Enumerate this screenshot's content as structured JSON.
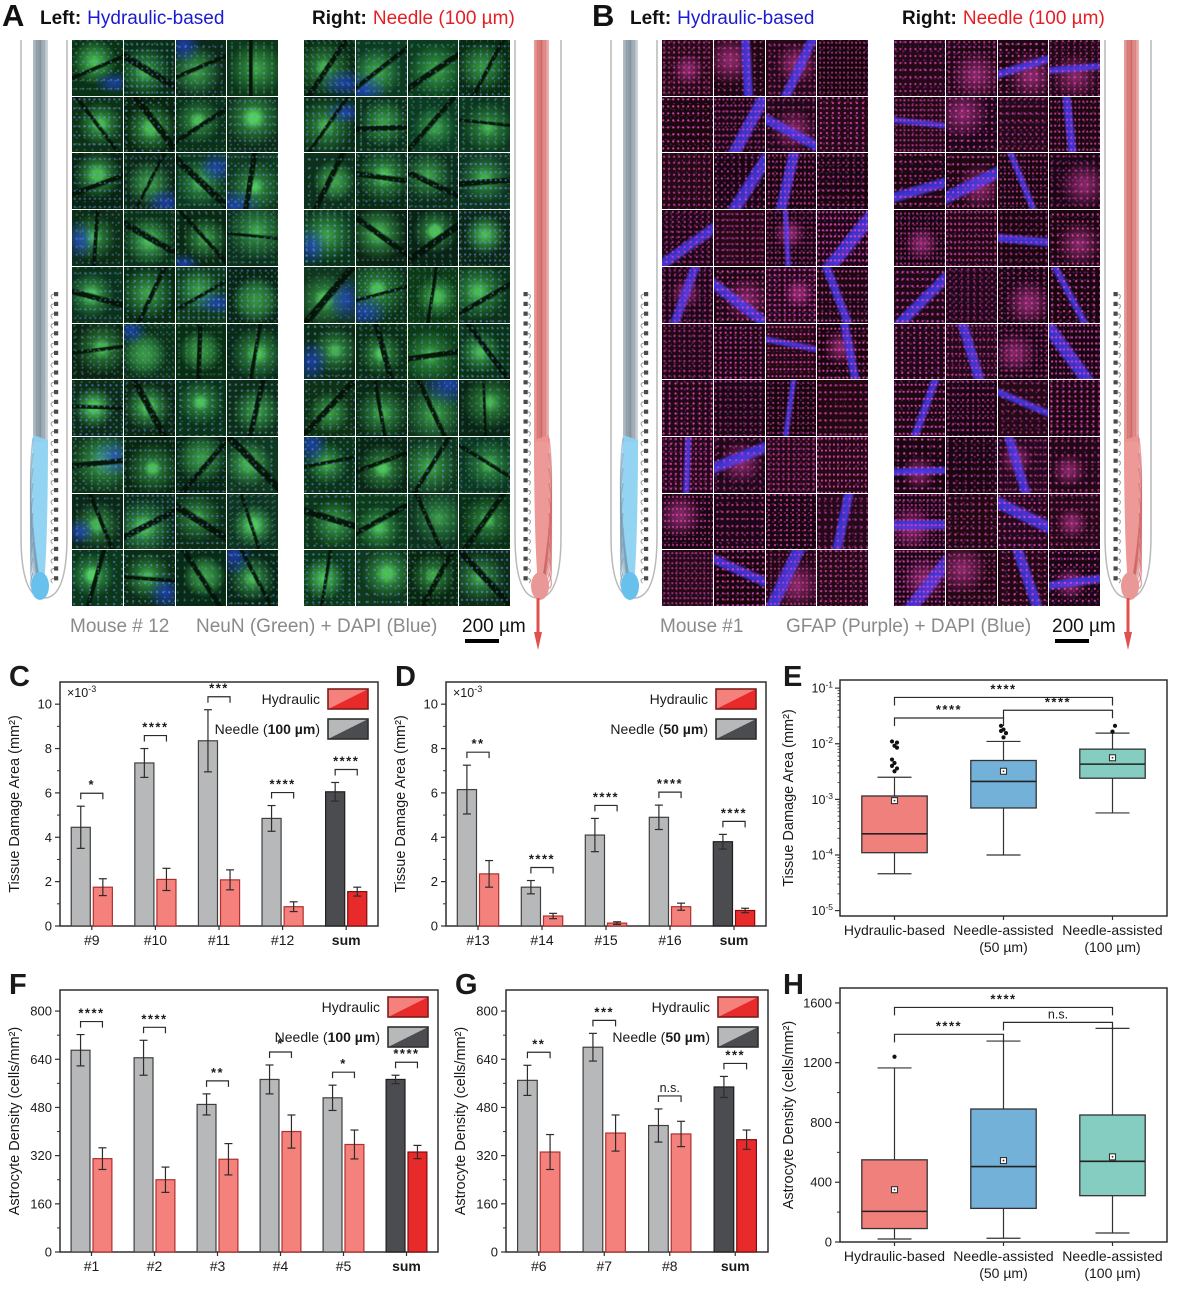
{
  "panel_a": {
    "letter": "A",
    "left_prefix": "Left:",
    "left_label": "Hydraulic-based",
    "right_prefix": "Right:",
    "right_label": "Needle (100 µm)",
    "caption_mouse": "Mouse # 12",
    "caption_stain": "NeuN (Green) + DAPI (Blue)",
    "caption_scale": "200 µm",
    "grid_rows": 10,
    "grid_cols": 4,
    "stain_type": "neun"
  },
  "panel_b": {
    "letter": "B",
    "left_prefix": "Left:",
    "left_label": "Hydraulic-based",
    "right_prefix": "Right:",
    "right_label": "Needle (100 µm)",
    "caption_mouse": "Mouse #1",
    "caption_stain": "GFAP (Purple) + DAPI (Blue)",
    "caption_scale": "200 µm",
    "grid_rows": 10,
    "grid_cols": 4,
    "stain_type": "gfap"
  },
  "colors": {
    "hydraulic_light": "#f5817d",
    "hydraulic_dark": "#e92a2b",
    "hydraulic_edge": "#b03030",
    "hydraulic_sum_edge": "#7d0f10",
    "needle_light": "#b7b8ba",
    "needle_dark": "#4b4c50",
    "needle_edge": "#3f3f3f",
    "needle_sum_edge": "#1e1e1e",
    "box_red": "#f0807b",
    "box_blue": "#74b1d9",
    "box_teal": "#85ccc1",
    "label_blue": "#1b1bd0",
    "label_red": "#e31e24"
  },
  "chart_data": [
    {
      "id": "C",
      "type": "bar",
      "ylabel": "Tissue Damage Area (mm²)",
      "scale_note_base": "×10",
      "scale_note_exp": "-3",
      "ylim": [
        0,
        11
      ],
      "yticks": [
        0,
        2,
        4,
        6,
        8,
        10
      ],
      "categories": [
        "#9",
        "#10",
        "#11",
        "#12",
        "sum"
      ],
      "series": [
        {
          "name": "Needle (100 µm)",
          "values": [
            4.45,
            7.35,
            8.35,
            4.85,
            6.05
          ],
          "errors": [
            0.95,
            0.65,
            1.4,
            0.58,
            0.42
          ]
        },
        {
          "name": "Hydraulic",
          "values": [
            1.75,
            2.1,
            2.08,
            0.87,
            1.55
          ],
          "errors": [
            0.38,
            0.5,
            0.45,
            0.22,
            0.2
          ]
        }
      ],
      "significance": [
        "*",
        "****",
        "***",
        "****",
        "****"
      ],
      "legend": {
        "hydraulic": "Hydraulic",
        "needle_pre": "Needle (",
        "needle_bold": "100 µm",
        "needle_post": ")"
      }
    },
    {
      "id": "D",
      "type": "bar",
      "ylabel": "Tissue Damage Area (mm²)",
      "scale_note_base": "×10",
      "scale_note_exp": "-3",
      "ylim": [
        0,
        11
      ],
      "yticks": [
        0,
        2,
        4,
        6,
        8,
        10
      ],
      "categories": [
        "#13",
        "#14",
        "#15",
        "#16",
        "sum"
      ],
      "series": [
        {
          "name": "Needle (50 µm)",
          "values": [
            6.15,
            1.75,
            4.1,
            4.9,
            3.8
          ],
          "errors": [
            1.1,
            0.3,
            0.75,
            0.55,
            0.33
          ]
        },
        {
          "name": "Hydraulic",
          "values": [
            2.35,
            0.45,
            0.13,
            0.87,
            0.7
          ],
          "errors": [
            0.6,
            0.12,
            0.06,
            0.16,
            0.1
          ]
        }
      ],
      "significance": [
        "**",
        "****",
        "****",
        "****",
        "****"
      ],
      "legend": {
        "hydraulic": "Hydraulic",
        "needle_pre": "Needle (",
        "needle_bold": "50 µm",
        "needle_post": ")"
      }
    },
    {
      "id": "E",
      "type": "box",
      "yscale": "log",
      "ylabel": "Tissue Damage Area (mm²)",
      "ylim": [
        8e-06,
        0.14
      ],
      "decades": [
        -1,
        -2,
        -3,
        -4,
        -5
      ],
      "categories": [
        [
          "Hydraulic-based"
        ],
        [
          "Needle-assisted",
          "(50 µm)"
        ],
        [
          "Needle-assisted",
          "(100 µm)"
        ]
      ],
      "boxes": [
        {
          "low": 4.6e-05,
          "q1": 0.00011,
          "median": 0.00024,
          "q3": 0.00115,
          "high": 0.0025,
          "mean": 0.00095,
          "outliers": [
            0.0032,
            0.0036,
            0.004,
            0.0045,
            0.0052,
            0.0085,
            0.0092,
            0.0105,
            0.011
          ],
          "color_key": "box_red"
        },
        {
          "low": 0.0001,
          "q1": 0.0007,
          "median": 0.0021,
          "q3": 0.005,
          "high": 0.011,
          "mean": 0.0032,
          "outliers": [
            0.013,
            0.0155,
            0.017,
            0.018,
            0.021
          ],
          "color_key": "box_blue"
        },
        {
          "low": 0.00057,
          "q1": 0.0024,
          "median": 0.0043,
          "q3": 0.008,
          "high": 0.0155,
          "mean": 0.0056,
          "outliers": [
            0.0165,
            0.021
          ],
          "color_key": "box_teal"
        }
      ],
      "brackets": [
        {
          "from": 0,
          "to": 2,
          "label": "****",
          "y": 0.068
        },
        {
          "from": 1,
          "to": 2,
          "label": "****",
          "y": 0.04
        },
        {
          "from": 0,
          "to": 1,
          "label": "****",
          "y": 0.029
        }
      ]
    },
    {
      "id": "F",
      "type": "bar",
      "ylabel": "Astrocyte Density (cells/mm²)",
      "ylim": [
        0,
        870
      ],
      "yticks": [
        0,
        160,
        320,
        480,
        640,
        800
      ],
      "categories": [
        "#1",
        "#2",
        "#3",
        "#4",
        "#5",
        "sum"
      ],
      "series": [
        {
          "name": "Needle (100 µm)",
          "values": [
            670,
            645,
            490,
            573,
            512,
            573
          ],
          "errors": [
            52,
            58,
            35,
            48,
            42,
            14
          ]
        },
        {
          "name": "Hydraulic",
          "values": [
            310,
            240,
            308,
            400,
            357,
            332
          ],
          "errors": [
            36,
            42,
            52,
            55,
            48,
            22
          ]
        }
      ],
      "significance": [
        "****",
        "****",
        "**",
        "*",
        "*",
        "****"
      ],
      "legend": {
        "hydraulic": "Hydraulic",
        "needle_pre": "Needle (",
        "needle_bold": "100 µm",
        "needle_post": ")"
      }
    },
    {
      "id": "G",
      "type": "bar",
      "ylabel": "Astrocyte Density (cells/mm²)",
      "ylim": [
        0,
        870
      ],
      "yticks": [
        0,
        160,
        320,
        480,
        640,
        800
      ],
      "categories": [
        "#6",
        "#7",
        "#8",
        "sum"
      ],
      "series": [
        {
          "name": "Needle (50 µm)",
          "values": [
            570,
            680,
            420,
            548
          ],
          "errors": [
            50,
            46,
            55,
            35
          ]
        },
        {
          "name": "Hydraulic",
          "values": [
            332,
            395,
            392,
            373
          ],
          "errors": [
            58,
            60,
            42,
            32
          ]
        }
      ],
      "significance": [
        "**",
        "***",
        "n.s.",
        "***"
      ],
      "legend": {
        "hydraulic": "Hydraulic",
        "needle_pre": "Needle (",
        "needle_bold": "50 µm",
        "needle_post": ")"
      }
    },
    {
      "id": "H",
      "type": "box",
      "yscale": "linear",
      "ylabel": "Astrocyte Density (cells/mm²)",
      "ylim": [
        0,
        1700
      ],
      "yticks": [
        0,
        400,
        800,
        1200,
        1600
      ],
      "categories": [
        [
          "Hydraulic-based"
        ],
        [
          "Needle-assisted",
          "(50 µm)"
        ],
        [
          "Needle-assisted",
          "(100 µm)"
        ]
      ],
      "boxes": [
        {
          "low": 20,
          "q1": 90,
          "median": 205,
          "q3": 550,
          "high": 1165,
          "mean": 350,
          "outliers": [
            1240
          ],
          "color_key": "box_red"
        },
        {
          "low": 25,
          "q1": 225,
          "median": 505,
          "q3": 890,
          "high": 1345,
          "mean": 545,
          "outliers": [],
          "color_key": "box_blue"
        },
        {
          "low": 60,
          "q1": 310,
          "median": 540,
          "q3": 850,
          "high": 1430,
          "mean": 570,
          "outliers": [],
          "color_key": "box_teal"
        }
      ],
      "brackets": [
        {
          "from": 0,
          "to": 2,
          "label": "****",
          "y": 1570
        },
        {
          "from": 1,
          "to": 2,
          "label": "n.s.",
          "y": 1470
        },
        {
          "from": 0,
          "to": 1,
          "label": "****",
          "y": 1390
        }
      ]
    }
  ]
}
